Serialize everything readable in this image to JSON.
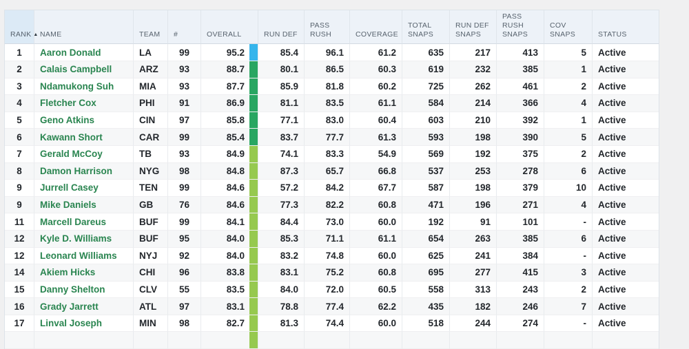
{
  "page": {
    "background_color": "#f0f0f1"
  },
  "table": {
    "sort": {
      "column_key": "rank",
      "direction": "asc",
      "arrow_glyph": "▲"
    },
    "columns": [
      {
        "key": "rank",
        "label": "RANK",
        "align": "center",
        "sorted": true
      },
      {
        "key": "name",
        "label": "NAME",
        "align": "left",
        "link": true
      },
      {
        "key": "team",
        "label": "TEAM",
        "align": "left"
      },
      {
        "key": "number",
        "label": "#",
        "align": "center"
      },
      {
        "key": "overall",
        "label": "OVERALL",
        "align": "right",
        "bar": true
      },
      {
        "key": "run_def",
        "label": "RUN DEF",
        "align": "right"
      },
      {
        "key": "pass_rush",
        "label": "PASS RUSH",
        "align": "right"
      },
      {
        "key": "coverage",
        "label": "COVERAGE",
        "align": "right"
      },
      {
        "key": "total_snaps",
        "label": "TOTAL SNAPS",
        "align": "right"
      },
      {
        "key": "run_def_snaps",
        "label": "RUN DEF SNAPS",
        "align": "right"
      },
      {
        "key": "pass_rush_snaps",
        "label": "PASS RUSH SNAPS",
        "align": "right"
      },
      {
        "key": "cov_snaps",
        "label": "COV SNAPS",
        "align": "right"
      },
      {
        "key": "status",
        "label": "STATUS",
        "align": "left"
      }
    ],
    "bar_colors": {
      "elite_blue": "#36b5ec",
      "green": "#29a662",
      "light_green": "#96c94f"
    },
    "rows": [
      {
        "rank": "1",
        "name": "Aaron Donald",
        "team": "LA",
        "number": "99",
        "overall": "95.2",
        "overall_bar": "#36b5ec",
        "run_def": "85.4",
        "pass_rush": "96.1",
        "coverage": "61.2",
        "total_snaps": "635",
        "run_def_snaps": "217",
        "pass_rush_snaps": "413",
        "cov_snaps": "5",
        "status": "Active"
      },
      {
        "rank": "2",
        "name": "Calais Campbell",
        "team": "ARZ",
        "number": "93",
        "overall": "88.7",
        "overall_bar": "#29a662",
        "run_def": "80.1",
        "pass_rush": "86.5",
        "coverage": "60.3",
        "total_snaps": "619",
        "run_def_snaps": "232",
        "pass_rush_snaps": "385",
        "cov_snaps": "1",
        "status": "Active"
      },
      {
        "rank": "3",
        "name": "Ndamukong Suh",
        "team": "MIA",
        "number": "93",
        "overall": "87.7",
        "overall_bar": "#29a662",
        "run_def": "85.9",
        "pass_rush": "81.8",
        "coverage": "60.2",
        "total_snaps": "725",
        "run_def_snaps": "262",
        "pass_rush_snaps": "461",
        "cov_snaps": "2",
        "status": "Active"
      },
      {
        "rank": "4",
        "name": "Fletcher Cox",
        "team": "PHI",
        "number": "91",
        "overall": "86.9",
        "overall_bar": "#29a662",
        "run_def": "81.1",
        "pass_rush": "83.5",
        "coverage": "61.1",
        "total_snaps": "584",
        "run_def_snaps": "214",
        "pass_rush_snaps": "366",
        "cov_snaps": "4",
        "status": "Active"
      },
      {
        "rank": "5",
        "name": "Geno Atkins",
        "team": "CIN",
        "number": "97",
        "overall": "85.8",
        "overall_bar": "#29a662",
        "run_def": "77.1",
        "pass_rush": "83.0",
        "coverage": "60.4",
        "total_snaps": "603",
        "run_def_snaps": "210",
        "pass_rush_snaps": "392",
        "cov_snaps": "1",
        "status": "Active"
      },
      {
        "rank": "6",
        "name": "Kawann Short",
        "team": "CAR",
        "number": "99",
        "overall": "85.4",
        "overall_bar": "#29a662",
        "run_def": "83.7",
        "pass_rush": "77.7",
        "coverage": "61.3",
        "total_snaps": "593",
        "run_def_snaps": "198",
        "pass_rush_snaps": "390",
        "cov_snaps": "5",
        "status": "Active"
      },
      {
        "rank": "7",
        "name": "Gerald McCoy",
        "team": "TB",
        "number": "93",
        "overall": "84.9",
        "overall_bar": "#96c94f",
        "run_def": "74.1",
        "pass_rush": "83.3",
        "coverage": "54.9",
        "total_snaps": "569",
        "run_def_snaps": "192",
        "pass_rush_snaps": "375",
        "cov_snaps": "2",
        "status": "Active"
      },
      {
        "rank": "8",
        "name": "Damon Harrison",
        "team": "NYG",
        "number": "98",
        "overall": "84.8",
        "overall_bar": "#96c94f",
        "run_def": "87.3",
        "pass_rush": "65.7",
        "coverage": "66.8",
        "total_snaps": "537",
        "run_def_snaps": "253",
        "pass_rush_snaps": "278",
        "cov_snaps": "6",
        "status": "Active"
      },
      {
        "rank": "9",
        "name": "Jurrell Casey",
        "team": "TEN",
        "number": "99",
        "overall": "84.6",
        "overall_bar": "#96c94f",
        "run_def": "57.2",
        "pass_rush": "84.2",
        "coverage": "67.7",
        "total_snaps": "587",
        "run_def_snaps": "198",
        "pass_rush_snaps": "379",
        "cov_snaps": "10",
        "status": "Active"
      },
      {
        "rank": "9",
        "name": "Mike Daniels",
        "team": "GB",
        "number": "76",
        "overall": "84.6",
        "overall_bar": "#96c94f",
        "run_def": "77.3",
        "pass_rush": "82.2",
        "coverage": "60.8",
        "total_snaps": "471",
        "run_def_snaps": "196",
        "pass_rush_snaps": "271",
        "cov_snaps": "4",
        "status": "Active"
      },
      {
        "rank": "11",
        "name": "Marcell Dareus",
        "team": "BUF",
        "number": "99",
        "overall": "84.1",
        "overall_bar": "#96c94f",
        "run_def": "84.4",
        "pass_rush": "73.0",
        "coverage": "60.0",
        "total_snaps": "192",
        "run_def_snaps": "91",
        "pass_rush_snaps": "101",
        "cov_snaps": "-",
        "status": "Active"
      },
      {
        "rank": "12",
        "name": "Kyle D. Williams",
        "team": "BUF",
        "number": "95",
        "overall": "84.0",
        "overall_bar": "#96c94f",
        "run_def": "85.3",
        "pass_rush": "71.1",
        "coverage": "61.1",
        "total_snaps": "654",
        "run_def_snaps": "263",
        "pass_rush_snaps": "385",
        "cov_snaps": "6",
        "status": "Active"
      },
      {
        "rank": "12",
        "name": "Leonard Williams",
        "team": "NYJ",
        "number": "92",
        "overall": "84.0",
        "overall_bar": "#96c94f",
        "run_def": "83.2",
        "pass_rush": "74.8",
        "coverage": "60.0",
        "total_snaps": "625",
        "run_def_snaps": "241",
        "pass_rush_snaps": "384",
        "cov_snaps": "-",
        "status": "Active"
      },
      {
        "rank": "14",
        "name": "Akiem Hicks",
        "team": "CHI",
        "number": "96",
        "overall": "83.8",
        "overall_bar": "#96c94f",
        "run_def": "83.1",
        "pass_rush": "75.2",
        "coverage": "60.8",
        "total_snaps": "695",
        "run_def_snaps": "277",
        "pass_rush_snaps": "415",
        "cov_snaps": "3",
        "status": "Active"
      },
      {
        "rank": "15",
        "name": "Danny Shelton",
        "team": "CLV",
        "number": "55",
        "overall": "83.5",
        "overall_bar": "#96c94f",
        "run_def": "84.0",
        "pass_rush": "72.0",
        "coverage": "60.5",
        "total_snaps": "558",
        "run_def_snaps": "313",
        "pass_rush_snaps": "243",
        "cov_snaps": "2",
        "status": "Active"
      },
      {
        "rank": "16",
        "name": "Grady Jarrett",
        "team": "ATL",
        "number": "97",
        "overall": "83.1",
        "overall_bar": "#96c94f",
        "run_def": "78.8",
        "pass_rush": "77.4",
        "coverage": "62.2",
        "total_snaps": "435",
        "run_def_snaps": "182",
        "pass_rush_snaps": "246",
        "cov_snaps": "7",
        "status": "Active"
      },
      {
        "rank": "17",
        "name": "Linval Joseph",
        "team": "MIN",
        "number": "98",
        "overall": "82.7",
        "overall_bar": "#96c94f",
        "run_def": "81.3",
        "pass_rush": "74.4",
        "coverage": "60.0",
        "total_snaps": "518",
        "run_def_snaps": "244",
        "pass_rush_snaps": "274",
        "cov_snaps": "-",
        "status": "Active"
      }
    ],
    "partial_row_at_bottom": {
      "overall_bar": "#96c94f"
    }
  }
}
